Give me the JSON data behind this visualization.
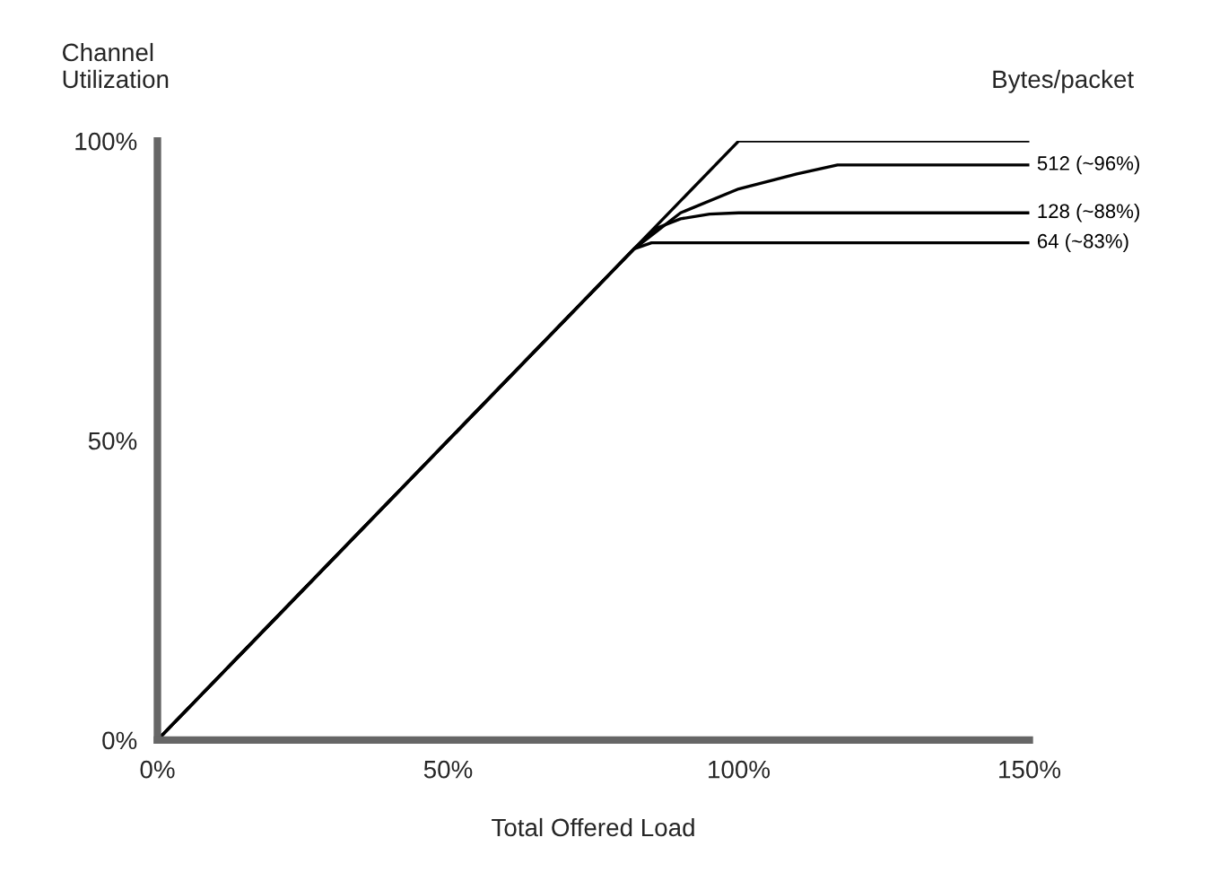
{
  "chart_data": {
    "type": "line",
    "xlabel": "Total Offered Load",
    "ylabel": "Channel\nUtilization",
    "xlim": [
      0,
      150
    ],
    "ylim": [
      0,
      100
    ],
    "xticks": [
      {
        "value": 0,
        "label": "0%"
      },
      {
        "value": 50,
        "label": "50%"
      },
      {
        "value": 100,
        "label": "100%"
      },
      {
        "value": 150,
        "label": "150%"
      }
    ],
    "yticks": [
      {
        "value": 0,
        "label": "0%"
      },
      {
        "value": 50,
        "label": "50%"
      },
      {
        "value": 100,
        "label": "100%"
      }
    ],
    "grid": false,
    "marker": "none",
    "line_style": "solid",
    "series": [
      {
        "color": "#000000",
        "x": [
          0,
          100,
          150
        ],
        "values": [
          0,
          100,
          100
        ]
      },
      {
        "name": "512 (~96%)",
        "color": "#000000",
        "x": [
          0,
          82,
          90,
          100,
          110,
          117,
          150
        ],
        "values": [
          0,
          82,
          88,
          92,
          94.5,
          96,
          96
        ]
      },
      {
        "name": "128 (~88%)",
        "color": "#000000",
        "x": [
          0,
          82,
          86,
          90,
          95,
          100,
          150
        ],
        "values": [
          0,
          82,
          85.5,
          87,
          87.8,
          88,
          88
        ]
      },
      {
        "name": "64 (~83%)",
        "color": "#000000",
        "x": [
          0,
          82,
          85,
          90,
          150
        ],
        "values": [
          0,
          82,
          83,
          83,
          83
        ]
      }
    ],
    "annotations": [
      "Bytes/packet"
    ]
  }
}
